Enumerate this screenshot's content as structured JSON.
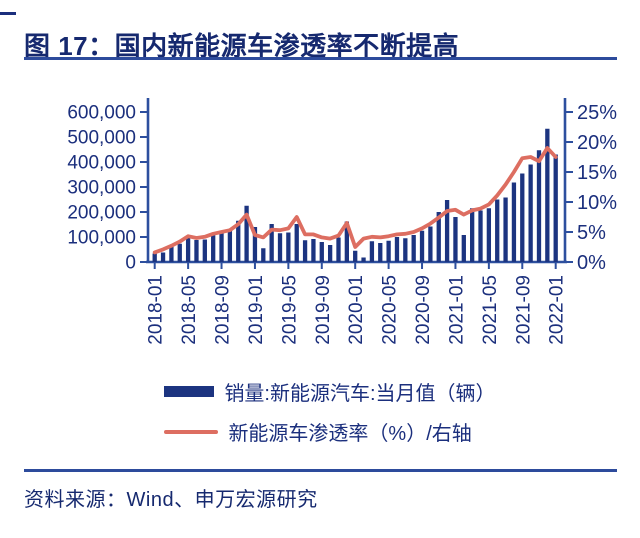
{
  "figure": {
    "title": "图 17：国内新能源车渗透率不断提高",
    "source": "资料来源：Wind、申万宏源研究"
  },
  "legend": {
    "bar_label": "销量:新能源汽车:当月值（辆）",
    "line_label": "新能源车渗透率（%）/右轴"
  },
  "colors": {
    "bar": "#1c3480",
    "line": "#dd6e61",
    "axis": "#2d4f9e",
    "text": "#1b2f7d",
    "rule": "#2d4b9c",
    "background": "#ffffff"
  },
  "chart_data": {
    "type": "bar",
    "subtype": "bar+line combo, dual axis",
    "grid": false,
    "legend_position": "bottom",
    "months": [
      "2018-01",
      "2018-02",
      "2018-03",
      "2018-04",
      "2018-05",
      "2018-06",
      "2018-07",
      "2018-08",
      "2018-09",
      "2018-10",
      "2018-11",
      "2018-12",
      "2019-01",
      "2019-02",
      "2019-03",
      "2019-04",
      "2019-05",
      "2019-06",
      "2019-07",
      "2019-08",
      "2019-09",
      "2019-10",
      "2019-11",
      "2019-12",
      "2020-01",
      "2020-02",
      "2020-03",
      "2020-04",
      "2020-05",
      "2020-06",
      "2020-07",
      "2020-08",
      "2020-09",
      "2020-10",
      "2020-11",
      "2020-12",
      "2021-01",
      "2021-02",
      "2021-03",
      "2021-04",
      "2021-05",
      "2021-06",
      "2021-07",
      "2021-08",
      "2021-09",
      "2021-10",
      "2021-11",
      "2021-12",
      "2022-01"
    ],
    "x_tick_labels": [
      "2018-01",
      "2018-05",
      "2018-09",
      "2019-01",
      "2019-05",
      "2019-09",
      "2020-01",
      "2020-05",
      "2020-09",
      "2021-01",
      "2021-05",
      "2021-09",
      "2022-01"
    ],
    "series": [
      {
        "name": "销量:新能源汽车:当月值（辆）",
        "type": "bar",
        "axis": "left",
        "values": [
          34000,
          38000,
          62000,
          73000,
          102000,
          88000,
          90000,
          107000,
          118000,
          130000,
          165000,
          225000,
          140000,
          55000,
          152000,
          115000,
          118000,
          152000,
          87000,
          92000,
          80000,
          68000,
          98000,
          162000,
          45000,
          18000,
          83000,
          76000,
          85000,
          100000,
          95000,
          108000,
          125000,
          142000,
          200000,
          248000,
          180000,
          108000,
          215000,
          206000,
          215000,
          250000,
          258000,
          318000,
          354000,
          390000,
          447000,
          533000,
          430000
        ]
      },
      {
        "name": "新能源车渗透率（%）/右轴",
        "type": "line",
        "axis": "right",
        "values": [
          1.6,
          2.1,
          2.7,
          3.4,
          4.3,
          4.0,
          4.2,
          4.7,
          5.0,
          5.3,
          6.3,
          7.9,
          4.5,
          4.1,
          5.4,
          5.3,
          5.6,
          7.5,
          4.6,
          4.6,
          4.1,
          3.9,
          4.4,
          6.5,
          2.5,
          3.9,
          4.2,
          4.1,
          4.3,
          4.6,
          4.7,
          5.0,
          5.6,
          6.4,
          7.4,
          8.5,
          8.7,
          7.9,
          8.6,
          8.9,
          9.6,
          11.1,
          12.9,
          15.0,
          17.3,
          17.5,
          16.8,
          19.0,
          17.5
        ]
      }
    ],
    "left_axis": {
      "min": 0,
      "max": 600000,
      "tick_step": 100000,
      "tick_labels": [
        "0",
        "100,000",
        "200,000",
        "300,000",
        "400,000",
        "500,000",
        "600,000"
      ]
    },
    "right_axis": {
      "min": 0,
      "max": 25,
      "tick_step": 5,
      "tick_labels": [
        "0%",
        "5%",
        "10%",
        "15%",
        "20%",
        "25%"
      ]
    }
  }
}
